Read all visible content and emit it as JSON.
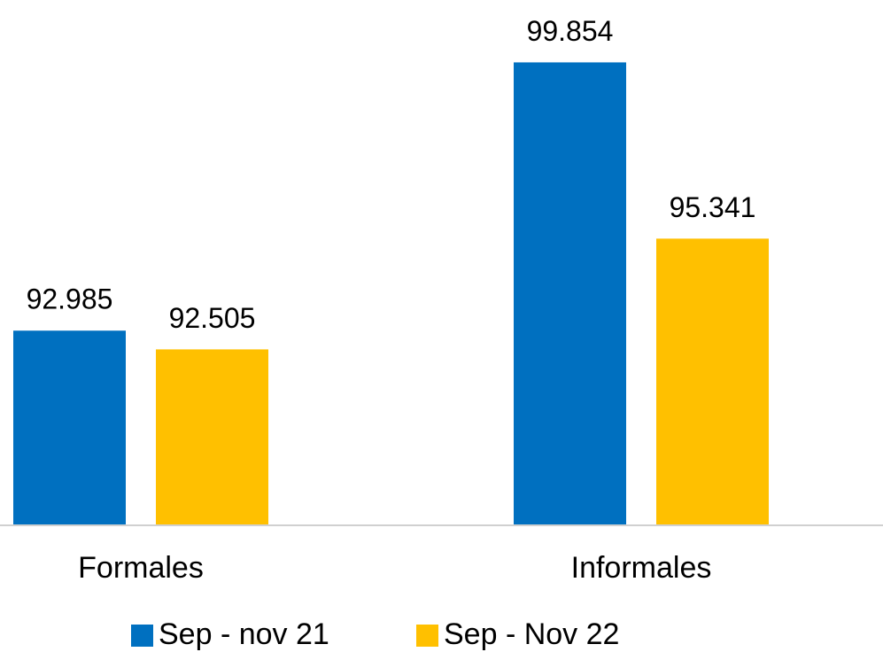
{
  "chart_data": {
    "type": "bar",
    "categories": [
      "Formales",
      "Informales"
    ],
    "series": [
      {
        "name": "Sep - nov 21",
        "color": "#0070c0",
        "values": [
          92985,
          99854
        ],
        "value_labels": [
          "92.985",
          "99.854"
        ]
      },
      {
        "name": "Sep - Nov 22",
        "color": "#ffc000",
        "values": [
          92505,
          95341
        ],
        "value_labels": [
          "92.505",
          "95.341"
        ]
      }
    ],
    "ylim": [
      88000,
      100000
    ]
  }
}
